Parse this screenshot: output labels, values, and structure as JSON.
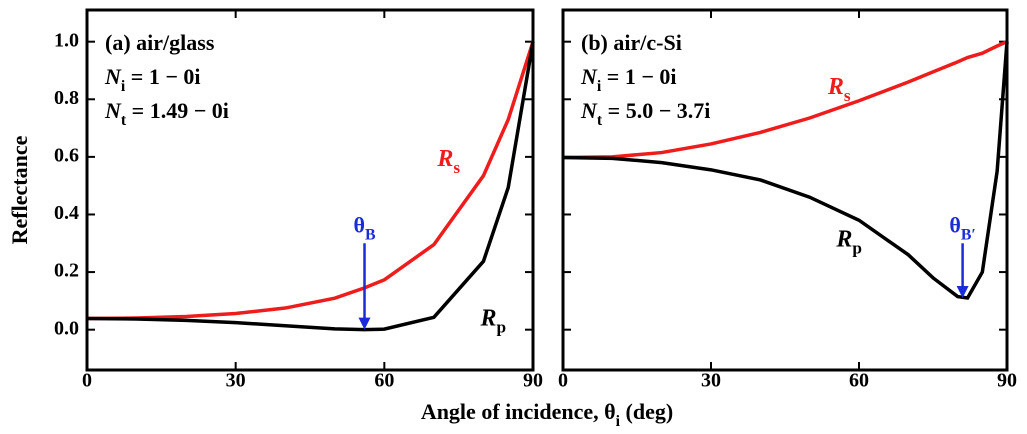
{
  "chart_data": [
    {
      "type": "line",
      "annotations": [
        [
          {
            "text": "(a) air/glass"
          }
        ],
        [
          {
            "text": "N",
            "style": "italic"
          },
          {
            "text": "i",
            "style": "sub"
          },
          {
            "text": " = 1 − 0i"
          }
        ],
        [
          {
            "text": "N",
            "style": "italic"
          },
          {
            "text": "t",
            "style": "sub"
          },
          {
            "text": " = 1.49 − 0i"
          }
        ]
      ],
      "marker": [
        {
          "text": "θ"
        },
        {
          "text": "B",
          "style": "sub"
        }
      ],
      "x": [
        0,
        10,
        20,
        30,
        40,
        50,
        56,
        60,
        70,
        80,
        85,
        90
      ],
      "series": [
        {
          "name": [
            {
              "text": "R",
              "style": "italic"
            },
            {
              "text": "s",
              "style": "sub"
            }
          ],
          "color": "#ee1c1c",
          "values": [
            0.0387,
            0.0404,
            0.0456,
            0.0561,
            0.0751,
            0.1094,
            0.145,
            0.1731,
            0.2954,
            0.5347,
            0.7295,
            1.0
          ]
        },
        {
          "name": [
            {
              "text": "R",
              "style": "italic"
            },
            {
              "text": "p",
              "style": "sub"
            }
          ],
          "color": "#000000",
          "values": [
            0.0387,
            0.0371,
            0.0324,
            0.0243,
            0.0137,
            0.003,
            0.0,
            0.0019,
            0.0429,
            0.2374,
            0.4936,
            1.0
          ]
        }
      ],
      "xlim": [
        0,
        90
      ],
      "xticks": [
        0,
        30,
        60,
        90
      ],
      "ylim": [
        -0.14,
        1.11
      ],
      "yticks": [
        {
          "value": 0,
          "label": "0.0"
        },
        {
          "value": 0.2,
          "label": "0.2"
        },
        {
          "value": 0.4,
          "label": "0.4"
        },
        {
          "value": 0.6,
          "label": "0.6"
        },
        {
          "value": 0.8,
          "label": "0.8"
        },
        {
          "value": 1.0,
          "label": "1.0"
        }
      ],
      "show_ytick_labels": true
    },
    {
      "type": "line",
      "annotations": [
        [
          {
            "text": "(b) air/c-Si"
          }
        ],
        [
          {
            "text": "N",
            "style": "italic"
          },
          {
            "text": "i",
            "style": "sub"
          },
          {
            "text": " = 1 − 0i"
          }
        ],
        [
          {
            "text": "N",
            "style": "italic"
          },
          {
            "text": "t",
            "style": "sub"
          },
          {
            "text": " = 5.0 − 3.7i"
          }
        ]
      ],
      "marker": [
        {
          "text": "θ"
        },
        {
          "text": "B′",
          "style": "sub"
        }
      ],
      "x": [
        0,
        10,
        20,
        30,
        40,
        50,
        60,
        70,
        75,
        80,
        82,
        85,
        88,
        90
      ],
      "series": [
        {
          "name": [
            {
              "text": "R",
              "style": "italic"
            },
            {
              "text": "s",
              "style": "sub"
            }
          ],
          "color": "#ee1c1c",
          "values": [
            0.598,
            0.6,
            0.615,
            0.645,
            0.685,
            0.735,
            0.795,
            0.86,
            0.895,
            0.93,
            0.945,
            0.96,
            0.985,
            1.0
          ]
        },
        {
          "name": [
            {
              "text": "R",
              "style": "italic"
            },
            {
              "text": "p",
              "style": "sub"
            }
          ],
          "color": "#000000",
          "values": [
            0.598,
            0.595,
            0.58,
            0.555,
            0.52,
            0.46,
            0.38,
            0.26,
            0.18,
            0.115,
            0.11,
            0.2,
            0.55,
            1.0
          ]
        }
      ],
      "xlim": [
        0,
        90
      ],
      "xticks": [
        0,
        30,
        60,
        90
      ],
      "ylim": [
        -0.14,
        1.11
      ],
      "yticks": [
        0,
        0.2,
        0.4,
        0.6,
        0.8,
        1.0
      ],
      "show_ytick_labels": false
    }
  ],
  "xlabel": [
    {
      "text": "Angle of incidence, θ"
    },
    {
      "text": "i",
      "style": "sub"
    },
    {
      "text": " (deg)"
    }
  ],
  "ylabel": "Reflectance"
}
